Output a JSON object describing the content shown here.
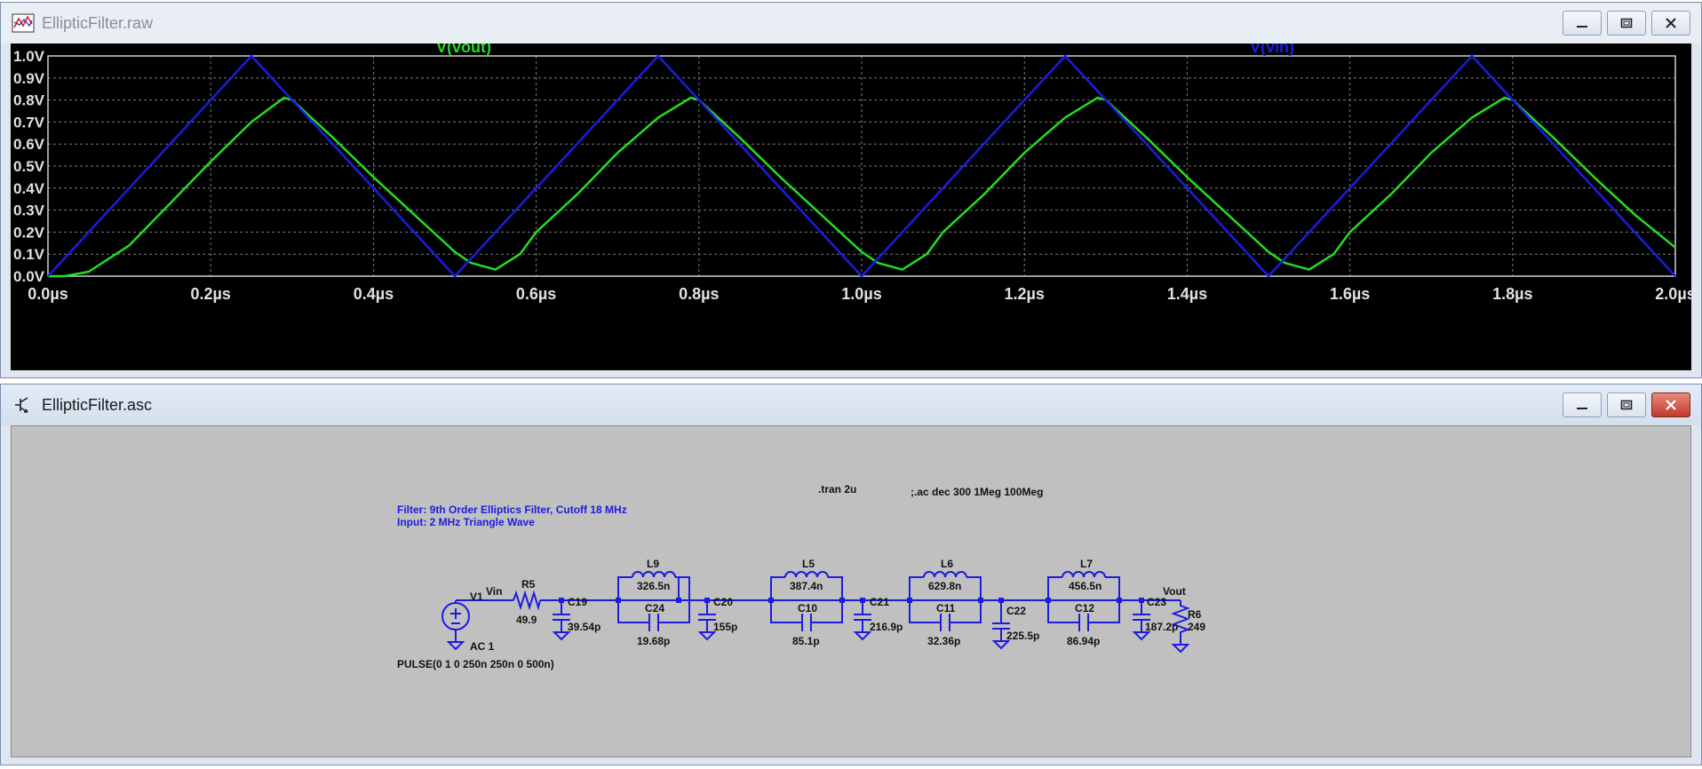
{
  "raw_window": {
    "title": "EllipticFilter.raw"
  },
  "asc_window": {
    "title": "EllipticFilter.asc"
  },
  "window_controls": {
    "minimize_icon": "minimize-icon",
    "maximize_icon": "maximize-icon",
    "close_icon": "close-icon"
  },
  "colors": {
    "vout": "#22dd22",
    "vin": "#1c1cdf",
    "grid": "#7a7a7a",
    "plot_bg": "#000000",
    "schematic_wire": "#1c1cdf",
    "schematic_bg": "#c0c0c0"
  },
  "chart_data": {
    "type": "line",
    "legend_placement": "top",
    "grid": true,
    "xlim": [
      0,
      2.0
    ],
    "ylim": [
      0,
      1.0
    ],
    "x_ticks": [
      "0.0µs",
      "0.2µs",
      "0.4µs",
      "0.6µs",
      "0.8µs",
      "1.0µs",
      "1.2µs",
      "1.4µs",
      "1.6µs",
      "1.8µs",
      "2.0µs"
    ],
    "y_ticks": [
      "0.0V",
      "0.1V",
      "0.2V",
      "0.3V",
      "0.4V",
      "0.5V",
      "0.6V",
      "0.7V",
      "0.8V",
      "0.9V",
      "1.0V"
    ],
    "series": [
      {
        "name": "V(vout)",
        "color": "#22dd22",
        "x": [
          0,
          0.02,
          0.05,
          0.1,
          0.15,
          0.2,
          0.25,
          0.29,
          0.3,
          0.35,
          0.4,
          0.45,
          0.5,
          0.52,
          0.55,
          0.58,
          0.6,
          0.65,
          0.7,
          0.75,
          0.79,
          0.8,
          0.85,
          0.9,
          0.95,
          1.0,
          1.02,
          1.05,
          1.08,
          1.1,
          1.15,
          1.2,
          1.25,
          1.29,
          1.3,
          1.35,
          1.4,
          1.45,
          1.5,
          1.52,
          1.55,
          1.58,
          1.6,
          1.65,
          1.7,
          1.75,
          1.79,
          1.8,
          1.85,
          1.9,
          1.95,
          2.0
        ],
        "values": [
          0,
          0.0,
          0.02,
          0.14,
          0.33,
          0.52,
          0.7,
          0.81,
          0.8,
          0.63,
          0.45,
          0.28,
          0.11,
          0.06,
          0.03,
          0.1,
          0.2,
          0.37,
          0.56,
          0.72,
          0.81,
          0.8,
          0.63,
          0.45,
          0.28,
          0.11,
          0.06,
          0.03,
          0.1,
          0.2,
          0.37,
          0.56,
          0.72,
          0.81,
          0.8,
          0.63,
          0.45,
          0.28,
          0.11,
          0.06,
          0.03,
          0.1,
          0.2,
          0.37,
          0.56,
          0.72,
          0.81,
          0.8,
          0.63,
          0.45,
          0.28,
          0.13
        ]
      },
      {
        "name": "V(vin)",
        "color": "#1c1cdf",
        "x": [
          0,
          0.25,
          0.5,
          0.75,
          1.0,
          1.25,
          1.5,
          1.75,
          2.0
        ],
        "values": [
          0,
          1.0,
          0,
          1.0,
          0,
          1.0,
          0,
          1.0,
          0
        ]
      }
    ]
  },
  "schematic": {
    "comment_line1": "Filter: 9th Order Elliptics Filter, Cutoff 18 MHz",
    "comment_line2": "Input: 2 MHz Triangle Wave",
    "tran_directive": ".tran 2u",
    "ac_directive": ";.ac dec 300 1Meg 100Meg",
    "source": {
      "name": "V1",
      "value": "AC 1",
      "pulse": "PULSE(0 1 0 250n 250n 0 500n)"
    },
    "net_vin": "Vin",
    "net_vout": "Vout",
    "r5": {
      "name": "R5",
      "value": "49.9"
    },
    "r6": {
      "name": "R6",
      "value": "249"
    },
    "c19": {
      "name": "C19",
      "value": "39.54p"
    },
    "l9": {
      "name": "L9",
      "value": "326.5n"
    },
    "c24": {
      "name": "C24",
      "value": "19.68p"
    },
    "c20": {
      "name": "C20",
      "value": "155p"
    },
    "l5": {
      "name": "L5",
      "value": "387.4n"
    },
    "c10": {
      "name": "C10",
      "value": "85.1p"
    },
    "c21": {
      "name": "C21",
      "value": "216.9p"
    },
    "l6": {
      "name": "L6",
      "value": "629.8n"
    },
    "c11": {
      "name": "C11",
      "value": "32.36p"
    },
    "c22": {
      "name": "C22",
      "value": "225.5p"
    },
    "l7": {
      "name": "L7",
      "value": "456.5n"
    },
    "c12": {
      "name": "C12",
      "value": "86.94p"
    },
    "c23": {
      "name": "C23",
      "value": "187.2p"
    }
  }
}
